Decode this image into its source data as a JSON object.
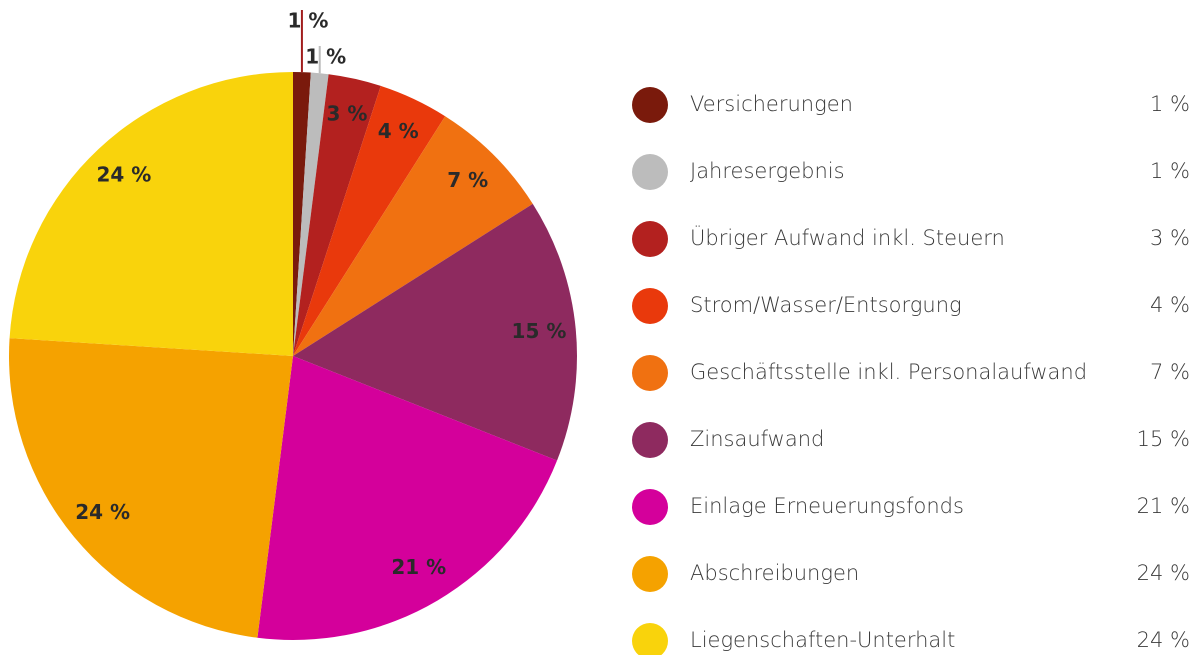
{
  "chart_data": {
    "type": "pie",
    "categories": [
      "Versicherungen",
      "Jahresergebnis",
      "Übriger Aufwand inkl. Steuern",
      "Strom/Wasser/Entsorgung",
      "Geschäftsstelle inkl. Personalaufwand",
      "Zinsaufwand",
      "Einlage Erneuerungsfonds",
      "Abschreibungen",
      "Liegenschaften-Unterhalt"
    ],
    "values": [
      1,
      1,
      3,
      4,
      7,
      15,
      21,
      24,
      24
    ],
    "value_labels": [
      "1 %",
      "1 %",
      "3 %",
      "4 %",
      "7 %",
      "15 %",
      "21 %",
      "24 %",
      "24 %"
    ],
    "colors": [
      "#7a1a0c",
      "#bcbcbc",
      "#b3211f",
      "#e9390c",
      "#f07111",
      "#8e2a5f",
      "#d4009b",
      "#f5a200",
      "#f9d30c"
    ],
    "legend": "right"
  }
}
